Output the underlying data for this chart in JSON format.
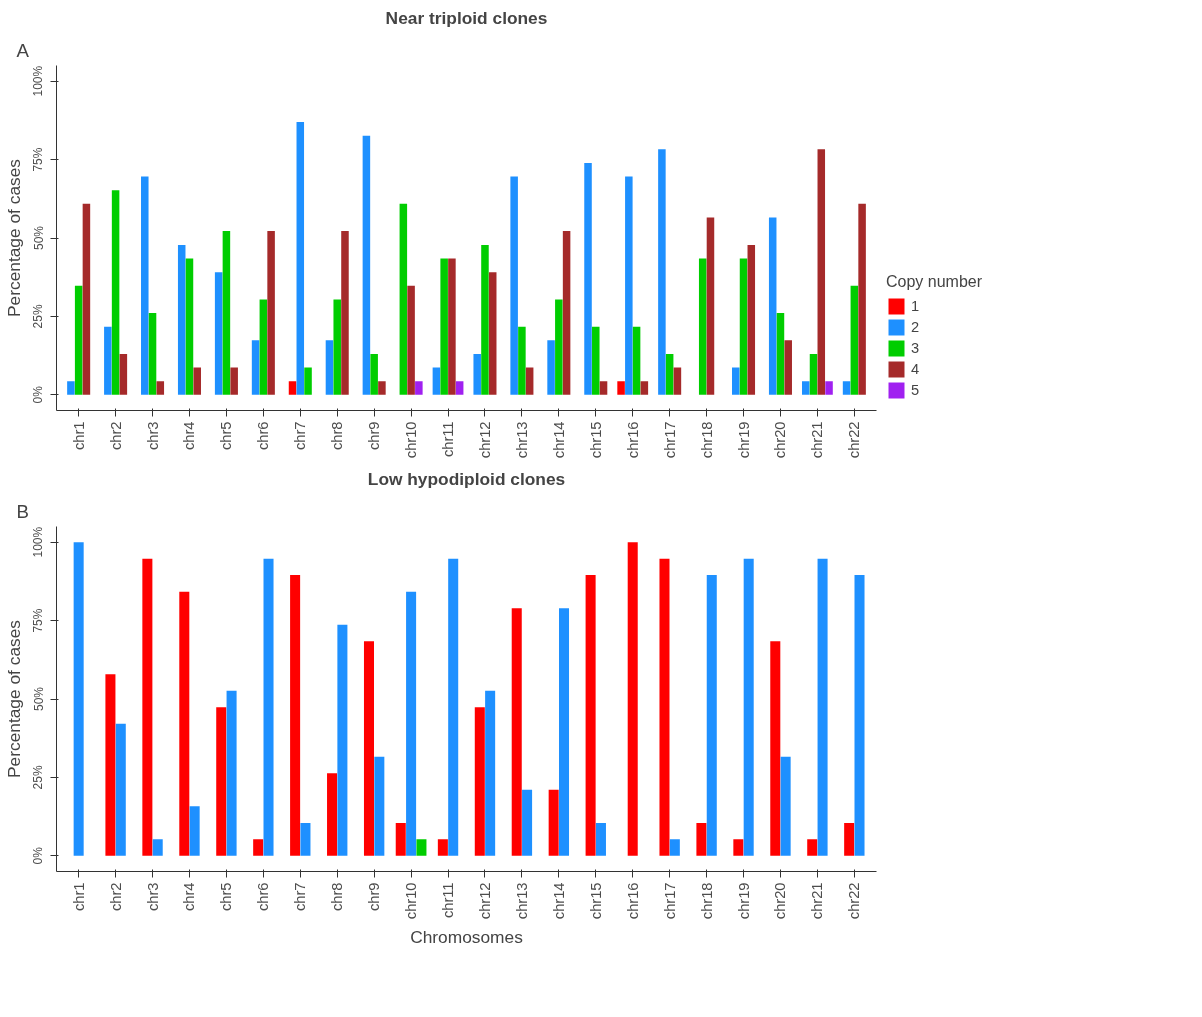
{
  "chart_data": [
    {
      "type": "bar",
      "title": "Near triploid clones",
      "ylabel": "Percentage of cases",
      "annotations": [
        "A"
      ],
      "legend": "right",
      "legend_title": "Copy number",
      "categories": [
        "chr1",
        "chr2",
        "chr3",
        "chr4",
        "chr5",
        "chr6",
        "chr7",
        "chr8",
        "chr9",
        "chr10",
        "chr11",
        "chr12",
        "chr13",
        "chr14",
        "chr15",
        "chr16",
        "chr17",
        "chr18",
        "chr19",
        "chr20",
        "chr21",
        "chr22"
      ],
      "ylim": [
        -5,
        105
      ],
      "yticks": [
        {
          "value": 0,
          "label": "0%"
        },
        {
          "value": 25,
          "label": "25%"
        },
        {
          "value": 50,
          "label": "50%"
        },
        {
          "value": 75,
          "label": "75%"
        },
        {
          "value": 100,
          "label": "100%"
        }
      ],
      "series": [
        {
          "name": "1",
          "color": "#ff0000",
          "values": [
            null,
            null,
            null,
            null,
            null,
            null,
            4.3,
            null,
            null,
            null,
            null,
            null,
            null,
            null,
            null,
            4.3,
            null,
            null,
            null,
            null,
            null,
            null
          ]
        },
        {
          "name": "2",
          "color": "#1e90ff",
          "values": [
            4.3,
            21.7,
            69.6,
            47.8,
            39.1,
            17.4,
            87.0,
            17.4,
            82.6,
            null,
            8.7,
            13.0,
            69.6,
            17.4,
            73.9,
            69.6,
            78.3,
            null,
            8.7,
            56.5,
            4.3,
            4.3
          ]
        },
        {
          "name": "3",
          "color": "#00cd00",
          "values": [
            34.8,
            65.2,
            26.1,
            43.5,
            52.2,
            30.4,
            8.7,
            30.4,
            13.0,
            60.9,
            43.5,
            47.8,
            21.7,
            30.4,
            21.7,
            21.7,
            13.0,
            43.5,
            43.5,
            26.1,
            13.0,
            34.8
          ]
        },
        {
          "name": "4",
          "color": "#a52a2a",
          "values": [
            60.9,
            13.0,
            4.3,
            8.7,
            8.7,
            52.2,
            null,
            52.2,
            4.3,
            34.8,
            43.5,
            39.1,
            8.7,
            52.2,
            4.3,
            4.3,
            8.7,
            56.5,
            47.8,
            17.4,
            78.3,
            60.9
          ]
        },
        {
          "name": "5",
          "color": "#a020f0",
          "values": [
            null,
            null,
            null,
            null,
            null,
            null,
            null,
            null,
            null,
            4.3,
            4.3,
            null,
            null,
            null,
            null,
            null,
            null,
            null,
            null,
            null,
            4.3,
            null
          ]
        }
      ]
    },
    {
      "type": "bar",
      "title": "Low hypodiploid clones",
      "xlabel": "Chromosomes",
      "ylabel": "Percentage of cases",
      "annotations": [
        "B"
      ],
      "categories": [
        "chr1",
        "chr2",
        "chr3",
        "chr4",
        "chr5",
        "chr6",
        "chr7",
        "chr8",
        "chr9",
        "chr10",
        "chr11",
        "chr12",
        "chr13",
        "chr14",
        "chr15",
        "chr16",
        "chr17",
        "chr18",
        "chr19",
        "chr20",
        "chr21",
        "chr22"
      ],
      "ylim": [
        -5,
        105
      ],
      "yticks": [
        {
          "value": 0,
          "label": "0%"
        },
        {
          "value": 25,
          "label": "25%"
        },
        {
          "value": 50,
          "label": "50%"
        },
        {
          "value": 75,
          "label": "75%"
        },
        {
          "value": 100,
          "label": "100%"
        }
      ],
      "series": [
        {
          "name": "1",
          "color": "#ff0000",
          "values": [
            null,
            57.9,
            94.7,
            84.2,
            47.4,
            5.3,
            89.5,
            26.3,
            68.4,
            10.5,
            5.3,
            47.4,
            78.9,
            21.1,
            89.5,
            100,
            94.7,
            10.5,
            5.3,
            68.4,
            5.3,
            10.5
          ]
        },
        {
          "name": "2",
          "color": "#1e90ff",
          "values": [
            100,
            42.1,
            5.3,
            15.8,
            52.6,
            94.7,
            10.5,
            73.7,
            31.6,
            84.2,
            94.7,
            52.6,
            21.1,
            78.9,
            10.5,
            null,
            5.3,
            89.5,
            94.7,
            31.6,
            94.7,
            89.5
          ]
        },
        {
          "name": "3",
          "color": "#00cd00",
          "values": [
            null,
            null,
            null,
            null,
            null,
            null,
            null,
            null,
            null,
            5.3,
            null,
            null,
            null,
            null,
            null,
            null,
            null,
            null,
            null,
            null,
            null,
            null
          ]
        }
      ]
    }
  ]
}
